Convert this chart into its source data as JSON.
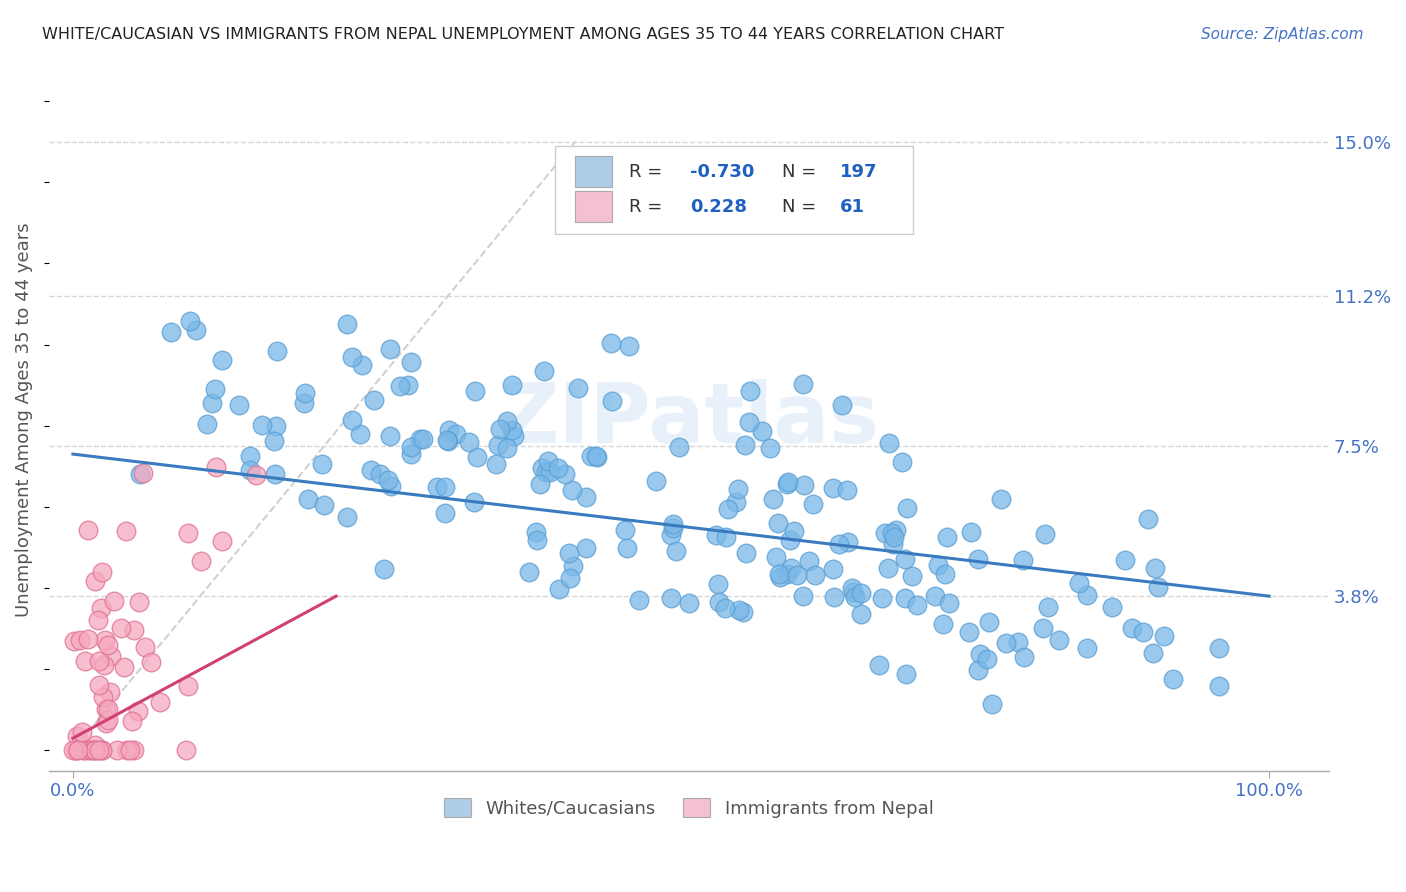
{
  "title": "WHITE/CAUCASIAN VS IMMIGRANTS FROM NEPAL UNEMPLOYMENT AMONG AGES 35 TO 44 YEARS CORRELATION CHART",
  "source": "Source: ZipAtlas.com",
  "ylabel": "Unemployment Among Ages 35 to 44 years",
  "blue_R": -0.73,
  "blue_N": 197,
  "pink_R": 0.228,
  "pink_N": 61,
  "blue_dot_color": "#7ab8e8",
  "blue_dot_edge": "#5a9fd4",
  "pink_dot_color": "#f5a8c0",
  "pink_dot_edge": "#e07090",
  "blue_fill_legend": "#aecde8",
  "pink_fill_legend": "#f5c0d0",
  "trend_blue": "#3a7bbf",
  "trend_pink": "#d04070",
  "ref_line_color": "#cccccc",
  "grid_color": "#cccccc",
  "title_color": "#222222",
  "source_color": "#4472c4",
  "legend_val_color": "#2060c0",
  "legend_label_color": "#333333",
  "watermark_color": "#dae8f5",
  "watermark": "ZIPatlas",
  "ytick_labels": [
    "3.8%",
    "7.5%",
    "11.2%",
    "15.0%"
  ],
  "ytick_values": [
    0.038,
    0.075,
    0.112,
    0.15
  ],
  "ymin": -0.005,
  "ymax": 0.168,
  "xmin": -0.02,
  "xmax": 1.05,
  "bottom_legend_label1": "Whites/Caucasians",
  "bottom_legend_label2": "Immigrants from Nepal"
}
